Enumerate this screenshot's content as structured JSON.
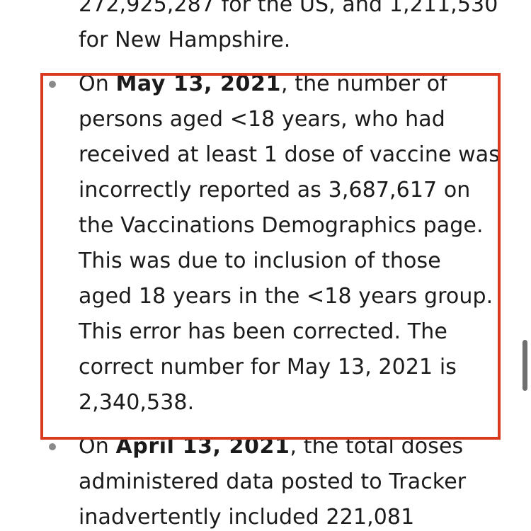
{
  "items": [
    {
      "lines_before": [
        "272,925,287 for the US, and 1,211,530",
        "for New Hampshire."
      ]
    },
    {
      "prefix": "On ",
      "date": "May 13, 2021",
      "line1_suffix": ", the number of",
      "lines": [
        "persons aged <18 years, who had",
        "received at least 1 dose of vaccine was",
        "incorrectly reported as 3,687,617 on",
        "the Vaccinations Demographics page.",
        "This was due to inclusion of those",
        "aged 18 years in the <18 years group.",
        "This error has been corrected. The",
        "correct number for May 13, 2021 is",
        "2,340,538."
      ]
    },
    {
      "prefix": "On ",
      "date": "April 13, 2021",
      "line1_suffix": ", the total doses",
      "lines": [
        "administered data posted to Tracker",
        "inadvertently included 221,081"
      ]
    }
  ],
  "colors": {
    "highlight_border": "#d93a1e",
    "text": "#1b1b1b",
    "bullet": "#8a8a8a"
  }
}
